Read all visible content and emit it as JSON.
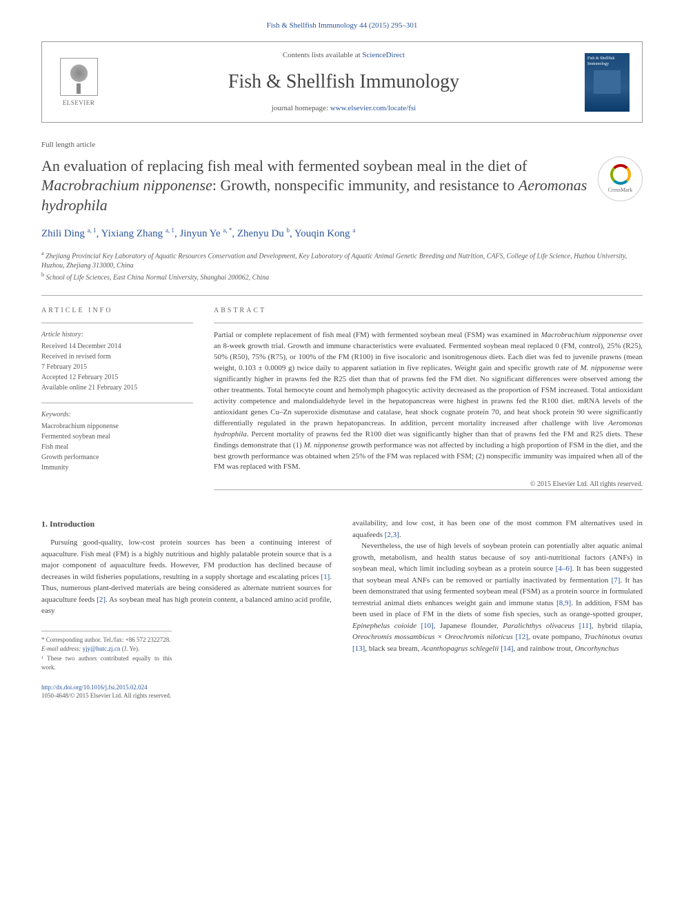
{
  "header": {
    "citation": "Fish & Shellfish Immunology 44 (2015) 295–301",
    "contents_prefix": "Contents lists available at ",
    "contents_link": "ScienceDirect",
    "journal_name": "Fish & Shellfish Immunology",
    "homepage_prefix": "journal homepage: ",
    "homepage_link": "www.elsevier.com/locate/fsi",
    "publisher_label": "ELSEVIER",
    "cover_label": "Fish & Shellfish Immunology"
  },
  "article": {
    "type": "Full length article",
    "title_html": "An evaluation of replacing fish meal with fermented soybean meal in the diet of <em>Macrobrachium nipponense</em>: Growth, nonspecific immunity, and resistance to <em>Aeromonas hydrophila</em>",
    "crossmark": "CrossMark"
  },
  "authors": {
    "list_html": "Zhili Ding <sup>a, 1</sup>, Yixiang Zhang <sup>a, 1</sup>, Jinyun Ye <sup>a, *</sup>, Zhenyu Du <sup>b</sup>, Youqin Kong <sup>a</sup>"
  },
  "affiliations": {
    "a": "Zhejiang Provincial Key Laboratory of Aquatic Resources Conservation and Development, Key Laboratory of Aquatic Animal Genetic Breeding and Nutrition, CAFS, College of Life Science, Huzhou University, Huzhou, Zhejiang 313000, China",
    "b": "School of Life Sciences, East China Normal University, Shanghai 200062, China"
  },
  "info": {
    "heading": "ARTICLE INFO",
    "history_label": "Article history:",
    "history": "Received 14 December 2014\nReceived in revised form\n7 February 2015\nAccepted 12 February 2015\nAvailable online 21 February 2015",
    "keywords_label": "Keywords:",
    "keywords": "Macrobrachium nipponense\nFermented soybean meal\nFish meal\nGrowth performance\nImmunity"
  },
  "abstract": {
    "heading": "ABSTRACT",
    "body_html": "Partial or complete replacement of fish meal (FM) with fermented soybean meal (FSM) was examined in <em>Macrobrachium nipponense</em> over an 8-week growth trial. Growth and immune characteristics were evaluated. Fermented soybean meal replaced 0 (FM, control), 25% (R25), 50% (R50), 75% (R75), or 100% of the FM (R100) in five isocaloric and isonitrogenous diets. Each diet was fed to juvenile prawns (mean weight, 0.103 ± 0.0009 g) twice daily to apparent satiation in five replicates. Weight gain and specific growth rate of <em>M. nipponense</em> were significantly higher in prawns fed the R25 diet than that of prawns fed the FM diet. No significant differences were observed among the other treatments. Total hemocyte count and hemolymph phagocytic activity decreased as the proportion of FSM increased. Total antioxidant activity competence and malondialdehyde level in the hepatopancreas were highest in prawns fed the R100 diet. mRNA levels of the antioxidant genes Cu–Zn superoxide dismutase and catalase, heat shock cognate protein 70, and heat shock protein 90 were significantly differentially regulated in the prawn hepatopancreas. In addition, percent mortality increased after challenge with live <em>Aeromonas hydrophila</em>. Percent mortality of prawns fed the R100 diet was significantly higher than that of prawns fed the FM and R25 diets. These findings demonstrate that (1) <em>M. nipponense</em> growth performance was not affected by including a high proportion of FSM in the diet, and the best growth performance was obtained when 25% of the FM was replaced with FSM; (2) nonspecific immunity was impaired when all of the FM was replaced with FSM.",
    "copyright": "© 2015 Elsevier Ltd. All rights reserved."
  },
  "intro": {
    "heading": "1. Introduction",
    "col1_html": "Pursuing good-quality, low-cost protein sources has been a continuing interest of aquaculture. Fish meal (FM) is a highly nutritious and highly palatable protein source that is a major component of aquaculture feeds. However, FM production has declined because of decreases in wild fisheries populations, resulting in a supply shortage and escalating prices <a class=\"ref\">[1]</a>. Thus, numerous plant-derived materials are being considered as alternate nutrient sources for aquaculture feeds <a class=\"ref\">[2]</a>. As soybean meal has high protein content, a balanced amino acid profile, easy",
    "col2_p1_html": "availability, and low cost, it has been one of the most common FM alternatives used in aquafeeds <a class=\"ref\">[2,3]</a>.",
    "col2_p2_html": "Nevertheless, the use of high levels of soybean protein can potentially alter aquatic animal growth, metabolism, and health status because of soy anti-nutritional factors (ANFs) in soybean meal, which limit including soybean as a protein source <a class=\"ref\">[4–6]</a>. It has been suggested that soybean meal ANFs can be removed or partially inactivated by fermentation <a class=\"ref\">[7]</a>. It has been demonstrated that using fermented soybean meal (FSM) as a protein source in formulated terrestrial animal diets enhances weight gain and immune status <a class=\"ref\">[8,9]</a>. In addition, FSM has been used in place of FM in the diets of some fish species, such as orange-spotted grouper, <em>Epinephelus coioide</em> <a class=\"ref\">[10]</a>, Japanese flounder, <em>Paralichthys olivaceus</em> <a class=\"ref\">[11]</a>, hybrid tilapia, <em>Oreochromis mossambicus × Oreochromis niloticus</em> <a class=\"ref\">[12]</a>, ovate pompano, <em>Trachinotus ovatus</em> <a class=\"ref\">[13]</a>, black sea bream, <em>Acanthopagrus schlegelii</em> <a class=\"ref\">[14]</a>, and rainbow trout, <em>Oncorhynchus</em>"
  },
  "footnotes": {
    "corr": "* Corresponding author. Tel./fax: +86 572 2322728.",
    "email_label": "E-mail address:",
    "email": "yjy@hutc.zj.cn",
    "email_name": "(J. Ye).",
    "equal": "¹ These two authors contributed equally to this work."
  },
  "doi": {
    "link": "http://dx.doi.org/10.1016/j.fsi.2015.02.024",
    "issn": "1050-4648/© 2015 Elsevier Ltd. All rights reserved."
  },
  "colors": {
    "link": "#2a5599",
    "text": "#444444",
    "muted": "#555555",
    "rule": "#aaaaaa"
  }
}
